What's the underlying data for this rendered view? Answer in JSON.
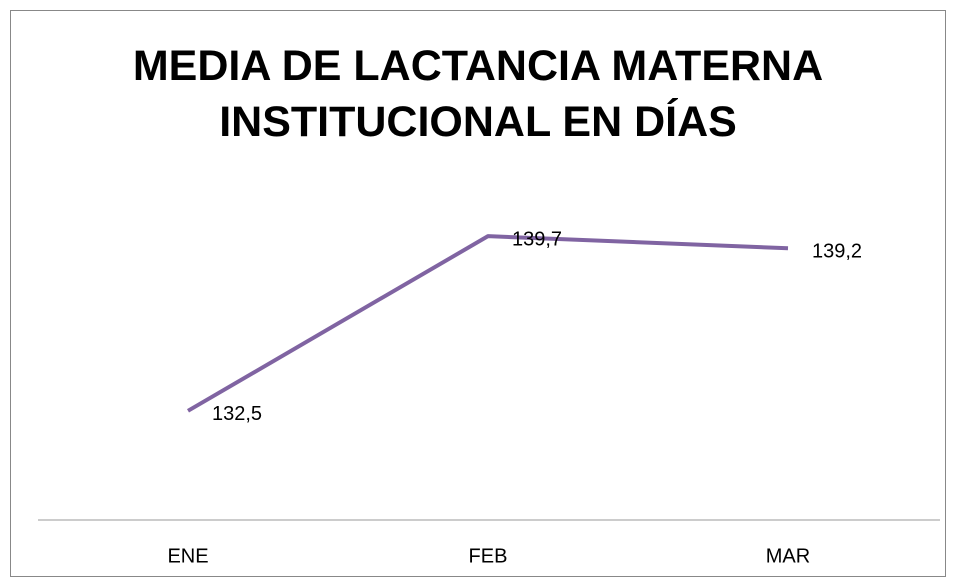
{
  "chart_data": {
    "type": "line",
    "title": "MEDIA DE LACTANCIA MATERNA INSTITUCIONAL EN DÍAS",
    "categories": [
      "ENE",
      "FEB",
      "MAR"
    ],
    "values": [
      132.5,
      139.7,
      139.2
    ],
    "value_labels": [
      "132,5",
      "139,7",
      "139,2"
    ],
    "color": "#8064a2",
    "ylim": [
      128,
      141
    ]
  }
}
